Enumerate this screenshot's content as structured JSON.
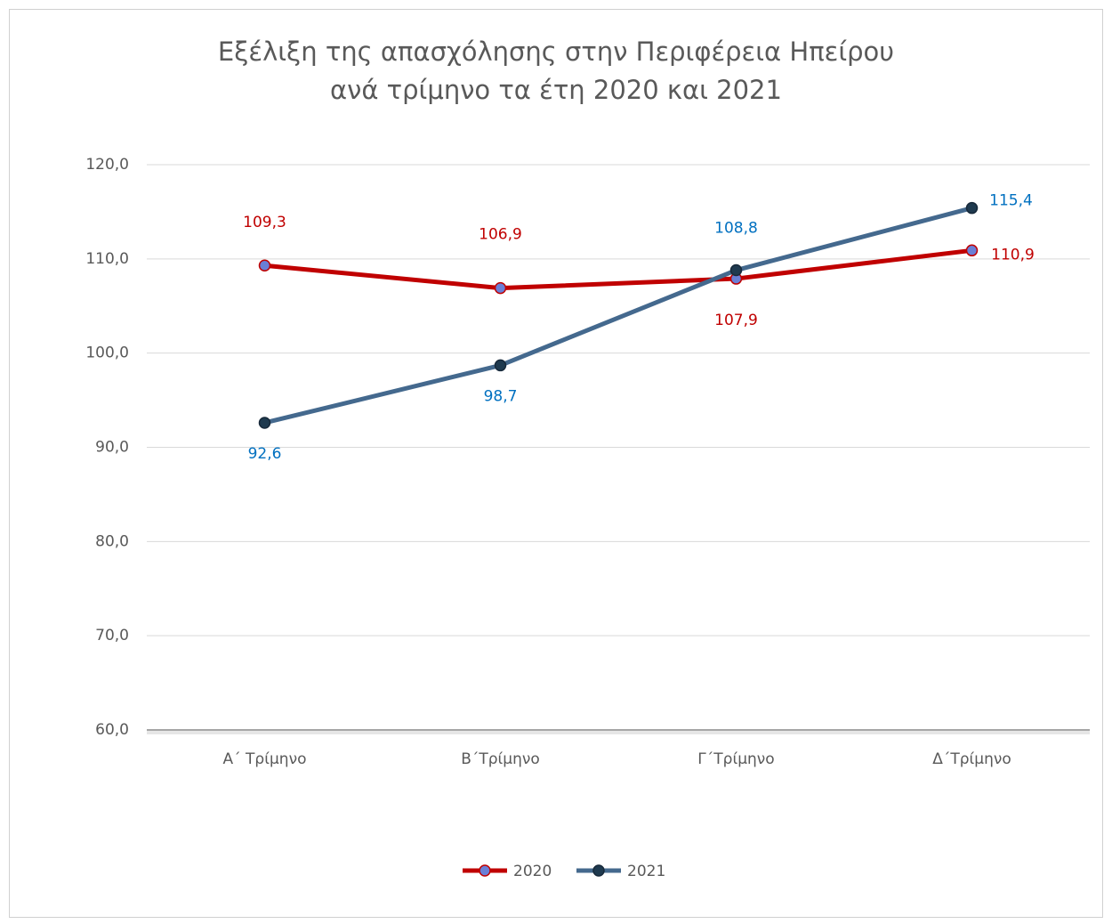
{
  "chart_data": {
    "type": "line",
    "title": [
      "Εξέλιξη της απασχόλησης στην Περιφέρεια Ηπείρου",
      "ανά τρίμηνο τα έτη 2020 και 2021"
    ],
    "categories": [
      "Α΄ Τρίμηνο",
      "Β΄Τρίμηνο",
      "Γ΄Τρίμηνο",
      "Δ΄Τρίμηνο"
    ],
    "series": [
      {
        "name": "2020",
        "color": "#c00000",
        "marker_color": "#6a7fd6",
        "label_color": "#c00000",
        "values": [
          109.3,
          106.9,
          107.9,
          110.9
        ],
        "value_labels": [
          "109,3",
          "106,9",
          "107,9",
          "110,9"
        ]
      },
      {
        "name": "2021",
        "color": "#44698e",
        "marker_color": "#1f3a4f",
        "label_color": "#0070c0",
        "values": [
          92.6,
          98.7,
          108.8,
          115.4
        ],
        "value_labels": [
          "92,6",
          "98,7",
          "108,8",
          "115,4"
        ]
      }
    ],
    "ylim": [
      60,
      120
    ],
    "yticks": [
      {
        "value": 60,
        "label": "60,0"
      },
      {
        "value": 70,
        "label": "70,0"
      },
      {
        "value": 80,
        "label": "80,0"
      },
      {
        "value": 90,
        "label": "90,0"
      },
      {
        "value": 100,
        "label": "100,0"
      },
      {
        "value": 110,
        "label": "110,0"
      },
      {
        "value": 120,
        "label": "120,0"
      }
    ],
    "grid": true,
    "legend": "bottom"
  }
}
